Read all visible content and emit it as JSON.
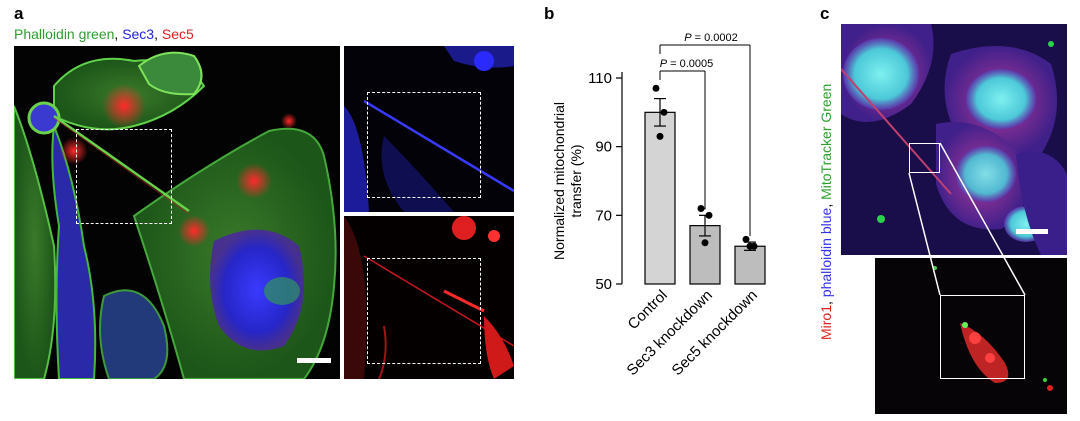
{
  "panel_a": {
    "label": "a",
    "title": {
      "green": "Phalloidin green",
      "sep1": ", ",
      "blue": "Sec3",
      "sep2": ", ",
      "red": "Sec5"
    }
  },
  "panel_b": {
    "label": "b"
  },
  "panel_c": {
    "label": "c",
    "vertical_label": {
      "red": "Miro1",
      "sep1": ", ",
      "blue": "phalloidin blue",
      "sep2": ", ",
      "green": "MitoTracker Green"
    }
  },
  "colors": {
    "green": "#2e9e2e",
    "blue": "#2222dd",
    "red": "#e02020",
    "bar_control": "#d4d4d4",
    "bar_kd": "#bdbdbd"
  },
  "chart_data": {
    "type": "bar",
    "categories": [
      "Control",
      "Sec3 knockdown",
      "Sec5 knockdown"
    ],
    "values": [
      100,
      67,
      61
    ],
    "error": [
      4,
      3,
      1.2
    ],
    "points": [
      [
        107,
        100,
        93
      ],
      [
        72,
        70,
        62
      ],
      [
        63,
        61,
        61
      ]
    ],
    "ylabel_lines": [
      "Normalized mitochondrial",
      "transfer (%)"
    ],
    "ylim": [
      50,
      110
    ],
    "yticks": [
      50,
      70,
      90,
      110
    ],
    "significance": [
      {
        "from": "Control",
        "to": "Sec5 knockdown",
        "label": "P = 0.0002",
        "p_italic": "P",
        "p_rest": " = 0.0002"
      },
      {
        "from": "Control",
        "to": "Sec3 knockdown",
        "label": "P = 0.0005",
        "p_italic": "P",
        "p_rest": " = 0.0005"
      }
    ]
  }
}
